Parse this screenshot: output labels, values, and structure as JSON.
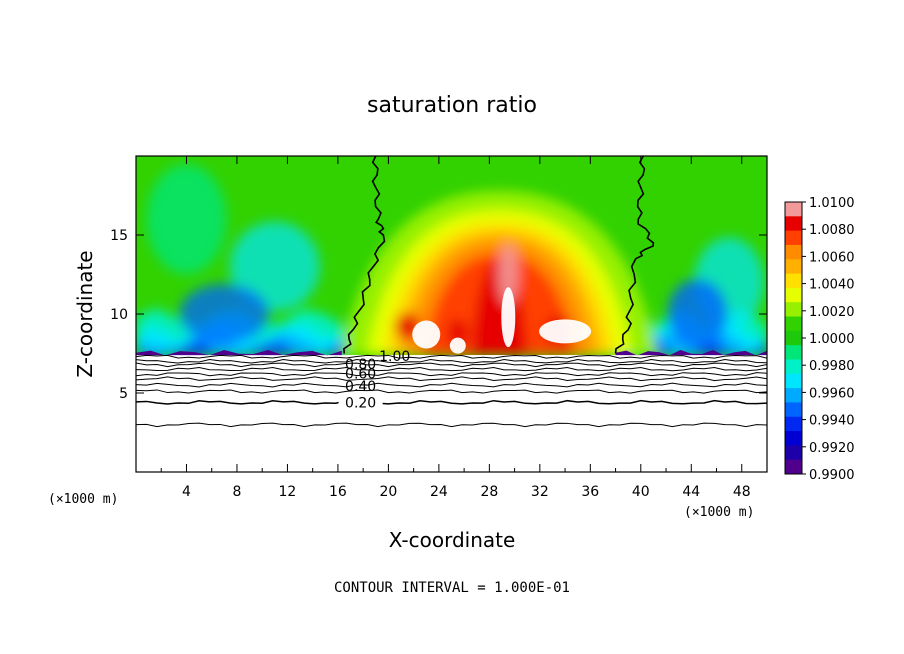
{
  "chart_data": {
    "type": "heatmap",
    "title": "saturation ratio",
    "xlabel": "X-coordinate",
    "ylabel": "Z-coordinate",
    "x_unit_label": "(×1000 m)",
    "y_unit_label": "(×1000 m)",
    "xlim": [
      0,
      50
    ],
    "ylim": [
      0,
      20
    ],
    "x_ticks": [
      4,
      8,
      12,
      16,
      20,
      24,
      28,
      32,
      36,
      40,
      44,
      48
    ],
    "x_tick_labels": [
      "4",
      "8",
      "12",
      "16",
      "20",
      "24",
      "28",
      "32",
      "36",
      "40",
      "44",
      "48"
    ],
    "y_ticks": [
      5,
      10,
      15
    ],
    "y_tick_labels": [
      "5",
      "10",
      "15"
    ],
    "colorbar": {
      "min": 0.99,
      "max": 1.01,
      "labels": [
        "1.0100",
        "1.0080",
        "1.0060",
        "1.0040",
        "1.0020",
        "1.0000",
        "0.9980",
        "0.9960",
        "0.9940",
        "0.9920",
        "0.9900"
      ],
      "colors": [
        "#f29a9a",
        "#e60000",
        "#ff4000",
        "#ff8c00",
        "#ffb000",
        "#ffe000",
        "#e6ff00",
        "#96f000",
        "#32d200",
        "#1ec80a",
        "#00e678",
        "#00f0c8",
        "#00e6ff",
        "#00aaff",
        "#0064ff",
        "#0028f0",
        "#0000d2",
        "#1e00aa",
        "#50008c"
      ]
    },
    "contour_lines": {
      "interval": 0.1,
      "labeled_values": [
        "1.00",
        "0.80",
        "0.60",
        "0.40",
        "0.20"
      ],
      "levels": [
        {
          "value": 1.0,
          "z": 7.3
        },
        {
          "value": 0.9,
          "z": 7.0
        },
        {
          "value": 0.8,
          "z": 6.8
        },
        {
          "value": 0.7,
          "z": 6.5
        },
        {
          "value": 0.6,
          "z": 6.2
        },
        {
          "value": 0.5,
          "z": 5.9
        },
        {
          "value": 0.4,
          "z": 5.5
        },
        {
          "value": 0.3,
          "z": 5.1
        },
        {
          "value": 0.2,
          "z": 4.4
        },
        {
          "value": 0.1,
          "z": 3.0
        }
      ]
    },
    "boundary_1_0000": {
      "left": [
        [
          19.0,
          20.0
        ],
        [
          19.0,
          18.0
        ],
        [
          19.2,
          16.0
        ],
        [
          19.6,
          15.0
        ],
        [
          18.8,
          13.0
        ],
        [
          18.0,
          11.0
        ],
        [
          17.2,
          9.0
        ],
        [
          16.5,
          7.5
        ]
      ],
      "right": [
        [
          40.2,
          20.0
        ],
        [
          40.0,
          18.0
        ],
        [
          39.8,
          16.0
        ],
        [
          41.0,
          14.5
        ],
        [
          39.6,
          13.5
        ],
        [
          39.2,
          11.0
        ],
        [
          39.0,
          9.0
        ],
        [
          38.0,
          7.5
        ]
      ]
    },
    "footer": "CONTOUR INTERVAL = 1.000E-01"
  }
}
